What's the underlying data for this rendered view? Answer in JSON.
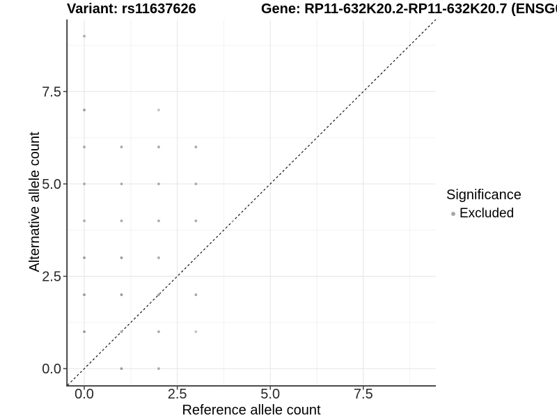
{
  "header": {
    "variant_title": "Variant: rs11637626",
    "gene_title": "Gene: RP11-632K20.2-RP11-632K20.7 (ENSG0"
  },
  "legend": {
    "title": "Significance",
    "entries": [
      {
        "label": "Excluded",
        "color": "#a8a8a8"
      }
    ]
  },
  "chart_data": {
    "type": "scatter",
    "xlabel": "Reference allele count",
    "ylabel": "Alternative allele count",
    "xlim": [
      -0.45,
      9.45
    ],
    "ylim": [
      -0.45,
      9.45
    ],
    "x_ticks": {
      "values": [
        0,
        2.5,
        5,
        7.5
      ],
      "labels": [
        "0.0",
        "2.5",
        "5.0",
        "7.5"
      ]
    },
    "y_ticks": {
      "values": [
        0,
        2.5,
        5,
        7.5
      ],
      "labels": [
        "0.0",
        "2.5",
        "5.0",
        "7.5"
      ]
    },
    "minor_gridlines": [
      1.25,
      3.75,
      6.25,
      8.75
    ],
    "grid": "major+minor on white panel",
    "legend_position": "right",
    "identity_line": {
      "style": "dashed",
      "from": [
        -0.45,
        -0.45
      ],
      "to": [
        9.45,
        9.45
      ],
      "color": "#000000"
    },
    "tones": {
      "dark": "#9a9a9a",
      "medium": "#a9a9a9",
      "light": "#c2c2c2"
    },
    "colors": {
      "grid_major": "#e4e4e4",
      "grid_minor": "#f2f2f2",
      "axis_line": "#333333",
      "tick_text": "#262626"
    },
    "series": [
      {
        "name": "Excluded",
        "points": [
          {
            "x": 0,
            "y": 1,
            "tone": "dark"
          },
          {
            "x": 0,
            "y": 2,
            "tone": "dark"
          },
          {
            "x": 0,
            "y": 3,
            "tone": "dark"
          },
          {
            "x": 0,
            "y": 4,
            "tone": "medium"
          },
          {
            "x": 0,
            "y": 5,
            "tone": "medium"
          },
          {
            "x": 0,
            "y": 6,
            "tone": "medium"
          },
          {
            "x": 0,
            "y": 7,
            "tone": "dark"
          },
          {
            "x": 0,
            "y": 9,
            "tone": "medium"
          },
          {
            "x": 1,
            "y": 0,
            "tone": "dark"
          },
          {
            "x": 1,
            "y": 1,
            "tone": "medium"
          },
          {
            "x": 1,
            "y": 2,
            "tone": "dark"
          },
          {
            "x": 1,
            "y": 3,
            "tone": "dark"
          },
          {
            "x": 1,
            "y": 4,
            "tone": "medium"
          },
          {
            "x": 1,
            "y": 5,
            "tone": "medium"
          },
          {
            "x": 1,
            "y": 6,
            "tone": "medium"
          },
          {
            "x": 2,
            "y": 0,
            "tone": "medium"
          },
          {
            "x": 2,
            "y": 1,
            "tone": "medium"
          },
          {
            "x": 2,
            "y": 2,
            "tone": "medium"
          },
          {
            "x": 2,
            "y": 3,
            "tone": "medium"
          },
          {
            "x": 2,
            "y": 4,
            "tone": "medium"
          },
          {
            "x": 2,
            "y": 5,
            "tone": "medium"
          },
          {
            "x": 2,
            "y": 6,
            "tone": "medium"
          },
          {
            "x": 2,
            "y": 7,
            "tone": "light"
          },
          {
            "x": 3,
            "y": 1,
            "tone": "light"
          },
          {
            "x": 3,
            "y": 2,
            "tone": "medium"
          },
          {
            "x": 3,
            "y": 3,
            "tone": "light",
            "small": true
          },
          {
            "x": 3,
            "y": 4,
            "tone": "medium"
          },
          {
            "x": 3,
            "y": 5,
            "tone": "medium"
          },
          {
            "x": 3,
            "y": 6,
            "tone": "medium"
          },
          {
            "x": 4,
            "y": 4,
            "tone": "light",
            "small": true
          }
        ]
      }
    ]
  }
}
